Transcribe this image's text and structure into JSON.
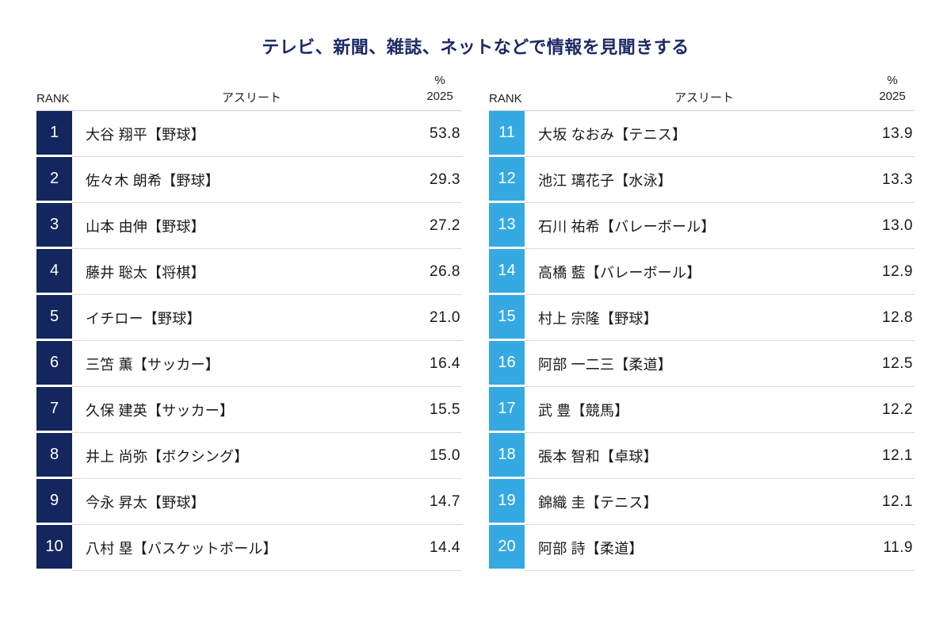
{
  "title": "テレビ、新聞、雑誌、ネットなどで情報を見聞きする",
  "header": {
    "rank_label": "RANK",
    "athlete_label": "アスリート",
    "unit_label": "%",
    "year_label": "2025"
  },
  "colors": {
    "title": "#1B2A66",
    "text": "#1A1A1A",
    "divider": "#DBDBDB",
    "rank_left_bg": "#14265E",
    "rank_right_bg": "#35A9E2",
    "rank_text": "#FFFFFF"
  },
  "chart_data": {
    "type": "table",
    "title": "テレビ、新聞、雑誌、ネットなどで情報を見聞きする",
    "columns": [
      "RANK",
      "アスリート",
      "% 2025"
    ],
    "value_label": "% 2025",
    "panels": [
      {
        "side": "left",
        "rank_bg": "#14265E",
        "rows": [
          {
            "rank": "1",
            "athlete": "大谷 翔平【野球】",
            "value": "53.8"
          },
          {
            "rank": "2",
            "athlete": "佐々木 朗希【野球】",
            "value": "29.3"
          },
          {
            "rank": "3",
            "athlete": "山本 由伸【野球】",
            "value": "27.2"
          },
          {
            "rank": "4",
            "athlete": "藤井 聡太【将棋】",
            "value": "26.8"
          },
          {
            "rank": "5",
            "athlete": "イチロー【野球】",
            "value": "21.0"
          },
          {
            "rank": "6",
            "athlete": "三笘 薫【サッカー】",
            "value": "16.4"
          },
          {
            "rank": "7",
            "athlete": "久保 建英【サッカー】",
            "value": "15.5"
          },
          {
            "rank": "8",
            "athlete": "井上 尚弥【ボクシング】",
            "value": "15.0"
          },
          {
            "rank": "9",
            "athlete": "今永 昇太【野球】",
            "value": "14.7"
          },
          {
            "rank": "10",
            "athlete": "八村 塁【バスケットボール】",
            "value": "14.4"
          }
        ]
      },
      {
        "side": "right",
        "rank_bg": "#35A9E2",
        "rows": [
          {
            "rank": "11",
            "athlete": "大坂 なおみ【テニス】",
            "value": "13.9"
          },
          {
            "rank": "12",
            "athlete": "池江 璃花子【水泳】",
            "value": "13.3"
          },
          {
            "rank": "13",
            "athlete": "石川 祐希【バレーボール】",
            "value": "13.0"
          },
          {
            "rank": "14",
            "athlete": "高橋 藍【バレーボール】",
            "value": "12.9"
          },
          {
            "rank": "15",
            "athlete": "村上 宗隆【野球】",
            "value": "12.8"
          },
          {
            "rank": "16",
            "athlete": "阿部 一二三【柔道】",
            "value": "12.5"
          },
          {
            "rank": "17",
            "athlete": "武 豊【競馬】",
            "value": "12.2"
          },
          {
            "rank": "18",
            "athlete": "張本 智和【卓球】",
            "value": "12.1"
          },
          {
            "rank": "19",
            "athlete": "錦織 圭【テニス】",
            "value": "12.1"
          },
          {
            "rank": "20",
            "athlete": "阿部 詩【柔道】",
            "value": "11.9"
          }
        ]
      }
    ]
  }
}
